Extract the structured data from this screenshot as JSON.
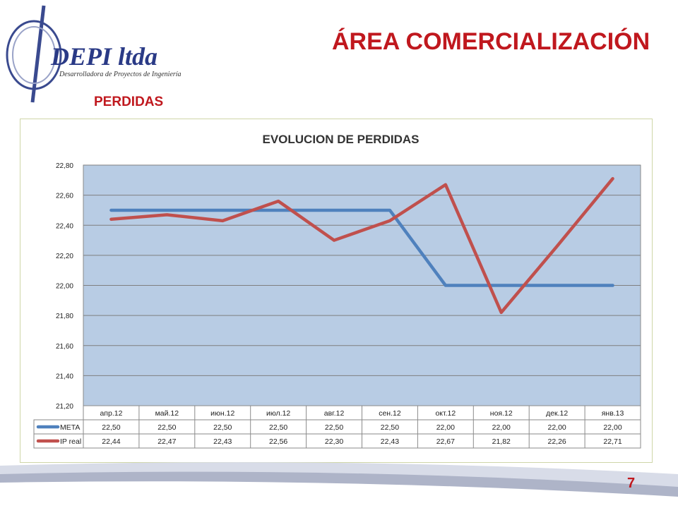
{
  "header": {
    "title": "ÁREA COMERCIALIZACIÓN",
    "subtitle": "PERDIDAS",
    "logo_text": "DEPI ltda",
    "logo_tagline": "Desarrolladora de Proyectos de Ingeniería"
  },
  "colors": {
    "title": "#c0181e",
    "plot_area": "#b8cce4",
    "meta": "#4f81bd",
    "ip_real": "#c0504d"
  },
  "chart_data": {
    "type": "line",
    "title": "EVOLUCION DE PERDIDAS",
    "categories": [
      "апр.12",
      "май.12",
      "июн.12",
      "июл.12",
      "авг.12",
      "сен.12",
      "окт.12",
      "ноя.12",
      "дек.12",
      "янв.13"
    ],
    "series": [
      {
        "name": "META",
        "values": [
          22.5,
          22.5,
          22.5,
          22.5,
          22.5,
          22.5,
          22.0,
          22.0,
          22.0,
          22.0
        ]
      },
      {
        "name": "IP real",
        "values": [
          22.44,
          22.47,
          22.43,
          22.56,
          22.3,
          22.43,
          22.67,
          21.82,
          22.26,
          22.71
        ]
      }
    ],
    "ylim": [
      21.2,
      22.8
    ],
    "yticks": [
      21.2,
      21.4,
      21.6,
      21.8,
      22.0,
      22.2,
      22.4,
      22.6,
      22.8
    ],
    "grid": true,
    "data_table": true,
    "decimal_separator": ","
  },
  "footer": {
    "page_number": "7"
  }
}
